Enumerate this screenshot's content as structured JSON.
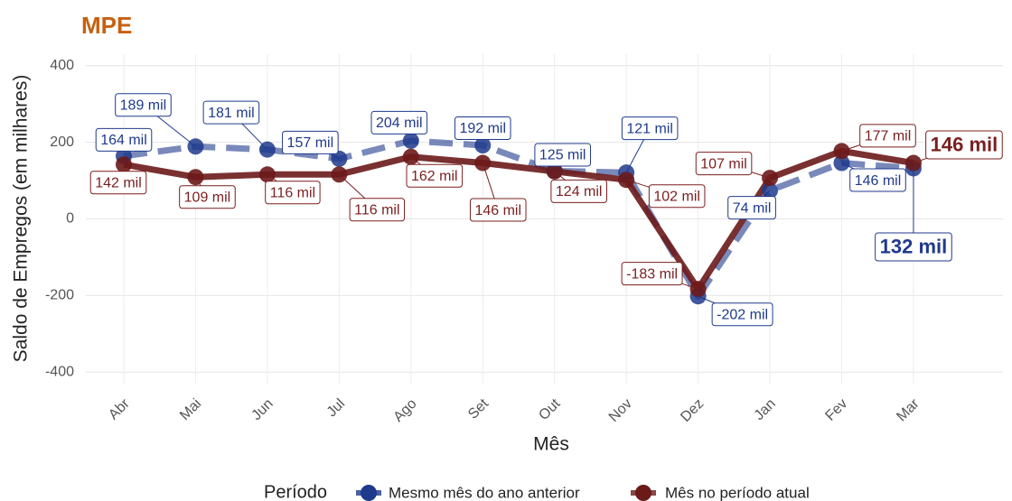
{
  "chart_data": {
    "type": "line",
    "title": "MPE",
    "y_label": "Saldo de Empregos (em milhares)",
    "x_label": "Mês",
    "legend_title": "Período",
    "categories": [
      "Abr",
      "Mai",
      "Jun",
      "Jul",
      "Ago",
      "Set",
      "Out",
      "Nov",
      "Dez",
      "Jan",
      "Fev",
      "Mar"
    ],
    "series": [
      {
        "name": "Mesmo mês do ano anterior",
        "color": "#1f3a8c",
        "line_style": "dashed",
        "values": [
          164,
          189,
          181,
          157,
          204,
          192,
          125,
          121,
          -202,
          74,
          146,
          132
        ],
        "value_labels": [
          "164 mil",
          "189 mil",
          "181 mil",
          "157 mil",
          "204 mil",
          "192 mil",
          "125 mil",
          "121 mil",
          "-202 mil",
          "74 mil",
          "146 mil",
          "132 mil"
        ]
      },
      {
        "name": "Mês no período atual",
        "color": "#6b1a1a",
        "line_style": "solid",
        "values": [
          142,
          109,
          116,
          116,
          162,
          146,
          124,
          102,
          -183,
          107,
          177,
          146
        ],
        "value_labels": [
          "142 mil",
          "109 mil",
          "116 mil",
          "116 mil",
          "162 mil",
          "146 mil",
          "124 mil",
          "102 mil",
          "-183 mil",
          "107 mil",
          "177 mil",
          "146 mil"
        ]
      }
    ],
    "ylim": [
      -430,
      430
    ],
    "yticks": [
      -400,
      -200,
      0,
      200,
      400
    ],
    "grid": true,
    "legend_position": "bottom"
  }
}
